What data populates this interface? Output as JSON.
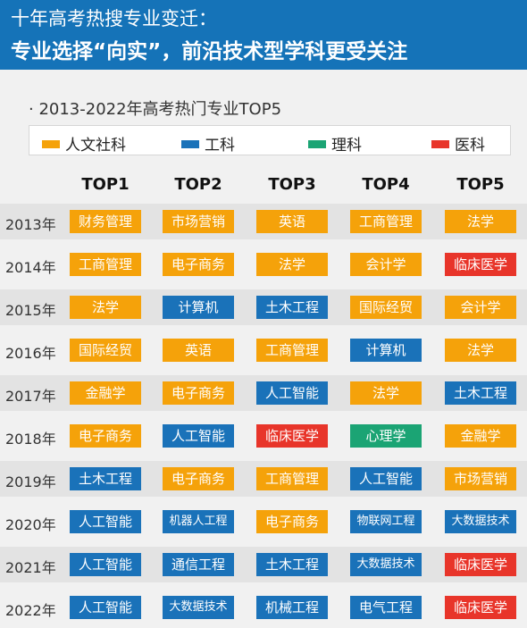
{
  "header": {
    "title_line1": "十年高考热搜专业变迁：",
    "title_line2": "专业选择“向实”，前沿技术型学科更受关注"
  },
  "subtitle": "· 2013-2022年高考热门专业TOP5",
  "colors": {
    "人文社科": "#f5a20a",
    "工科": "#1a72b9",
    "理科": "#1ba474",
    "医科": "#e8352a"
  },
  "chart_data": {
    "type": "table",
    "title": "2013-2022年高考热门专业TOP5",
    "legend": [
      {
        "name": "人文社科",
        "color": "#f5a20a"
      },
      {
        "name": "工科",
        "color": "#1a72b9"
      },
      {
        "name": "理科",
        "color": "#1ba474"
      },
      {
        "name": "医科",
        "color": "#e8352a"
      }
    ],
    "columns": [
      "TOP1",
      "TOP2",
      "TOP3",
      "TOP4",
      "TOP5"
    ],
    "rows": [
      {
        "year": "2013年",
        "cells": [
          {
            "text": "财务管理",
            "cat": "人文社科"
          },
          {
            "text": "市场营销",
            "cat": "人文社科"
          },
          {
            "text": "英语",
            "cat": "人文社科"
          },
          {
            "text": "工商管理",
            "cat": "人文社科"
          },
          {
            "text": "法学",
            "cat": "人文社科"
          }
        ]
      },
      {
        "year": "2014年",
        "cells": [
          {
            "text": "工商管理",
            "cat": "人文社科"
          },
          {
            "text": "电子商务",
            "cat": "人文社科"
          },
          {
            "text": "法学",
            "cat": "人文社科"
          },
          {
            "text": "会计学",
            "cat": "人文社科"
          },
          {
            "text": "临床医学",
            "cat": "医科"
          }
        ]
      },
      {
        "year": "2015年",
        "cells": [
          {
            "text": "法学",
            "cat": "人文社科"
          },
          {
            "text": "计算机",
            "cat": "工科"
          },
          {
            "text": "土木工程",
            "cat": "工科"
          },
          {
            "text": "国际经贸",
            "cat": "人文社科"
          },
          {
            "text": "会计学",
            "cat": "人文社科"
          }
        ]
      },
      {
        "year": "2016年",
        "cells": [
          {
            "text": "国际经贸",
            "cat": "人文社科"
          },
          {
            "text": "英语",
            "cat": "人文社科"
          },
          {
            "text": "工商管理",
            "cat": "人文社科"
          },
          {
            "text": "计算机",
            "cat": "工科"
          },
          {
            "text": "法学",
            "cat": "人文社科"
          }
        ]
      },
      {
        "year": "2017年",
        "cells": [
          {
            "text": "金融学",
            "cat": "人文社科"
          },
          {
            "text": "电子商务",
            "cat": "人文社科"
          },
          {
            "text": "人工智能",
            "cat": "工科"
          },
          {
            "text": "法学",
            "cat": "人文社科"
          },
          {
            "text": "土木工程",
            "cat": "工科"
          }
        ]
      },
      {
        "year": "2018年",
        "cells": [
          {
            "text": "电子商务",
            "cat": "人文社科"
          },
          {
            "text": "人工智能",
            "cat": "工科"
          },
          {
            "text": "临床医学",
            "cat": "医科"
          },
          {
            "text": "心理学",
            "cat": "理科"
          },
          {
            "text": "金融学",
            "cat": "人文社科"
          }
        ]
      },
      {
        "year": "2019年",
        "cells": [
          {
            "text": "土木工程",
            "cat": "工科"
          },
          {
            "text": "电子商务",
            "cat": "人文社科"
          },
          {
            "text": "工商管理",
            "cat": "人文社科"
          },
          {
            "text": "人工智能",
            "cat": "工科"
          },
          {
            "text": "市场营销",
            "cat": "人文社科"
          }
        ]
      },
      {
        "year": "2020年",
        "cells": [
          {
            "text": "人工智能",
            "cat": "工科"
          },
          {
            "text": "机器人工程",
            "cat": "工科"
          },
          {
            "text": "电子商务",
            "cat": "人文社科"
          },
          {
            "text": "物联网工程",
            "cat": "工科"
          },
          {
            "text": "大数据技术",
            "cat": "工科"
          }
        ]
      },
      {
        "year": "2021年",
        "cells": [
          {
            "text": "人工智能",
            "cat": "工科"
          },
          {
            "text": "通信工程",
            "cat": "工科"
          },
          {
            "text": "土木工程",
            "cat": "工科"
          },
          {
            "text": "大数据技术",
            "cat": "工科"
          },
          {
            "text": "临床医学",
            "cat": "医科"
          }
        ]
      },
      {
        "year": "2022年",
        "cells": [
          {
            "text": "人工智能",
            "cat": "工科"
          },
          {
            "text": "大数据技术",
            "cat": "工科"
          },
          {
            "text": "机械工程",
            "cat": "工科"
          },
          {
            "text": "电气工程",
            "cat": "工科"
          },
          {
            "text": "临床医学",
            "cat": "医科"
          }
        ]
      }
    ]
  }
}
